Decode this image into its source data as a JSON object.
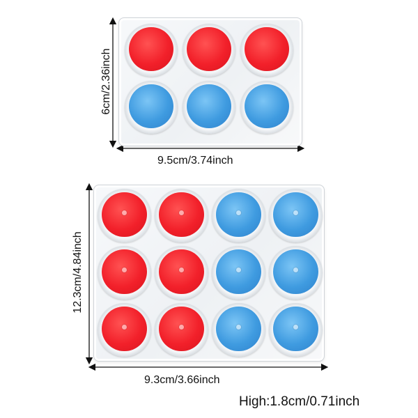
{
  "small_tray": {
    "height_label": "6cm/2.36inch",
    "width_label": "9.5cm/3.74inch",
    "rows": [
      [
        "red",
        "red",
        "red"
      ],
      [
        "blue",
        "blue",
        "blue"
      ]
    ]
  },
  "large_tray": {
    "height_label": "12.3cm/4.84inch",
    "width_label": "9.3cm/3.66inch",
    "rows": [
      [
        "red",
        "red",
        "blue",
        "blue"
      ],
      [
        "red",
        "red",
        "blue",
        "blue"
      ],
      [
        "red",
        "red",
        "blue",
        "blue"
      ]
    ]
  },
  "high_label": "High:1.8cm/0.71inch"
}
